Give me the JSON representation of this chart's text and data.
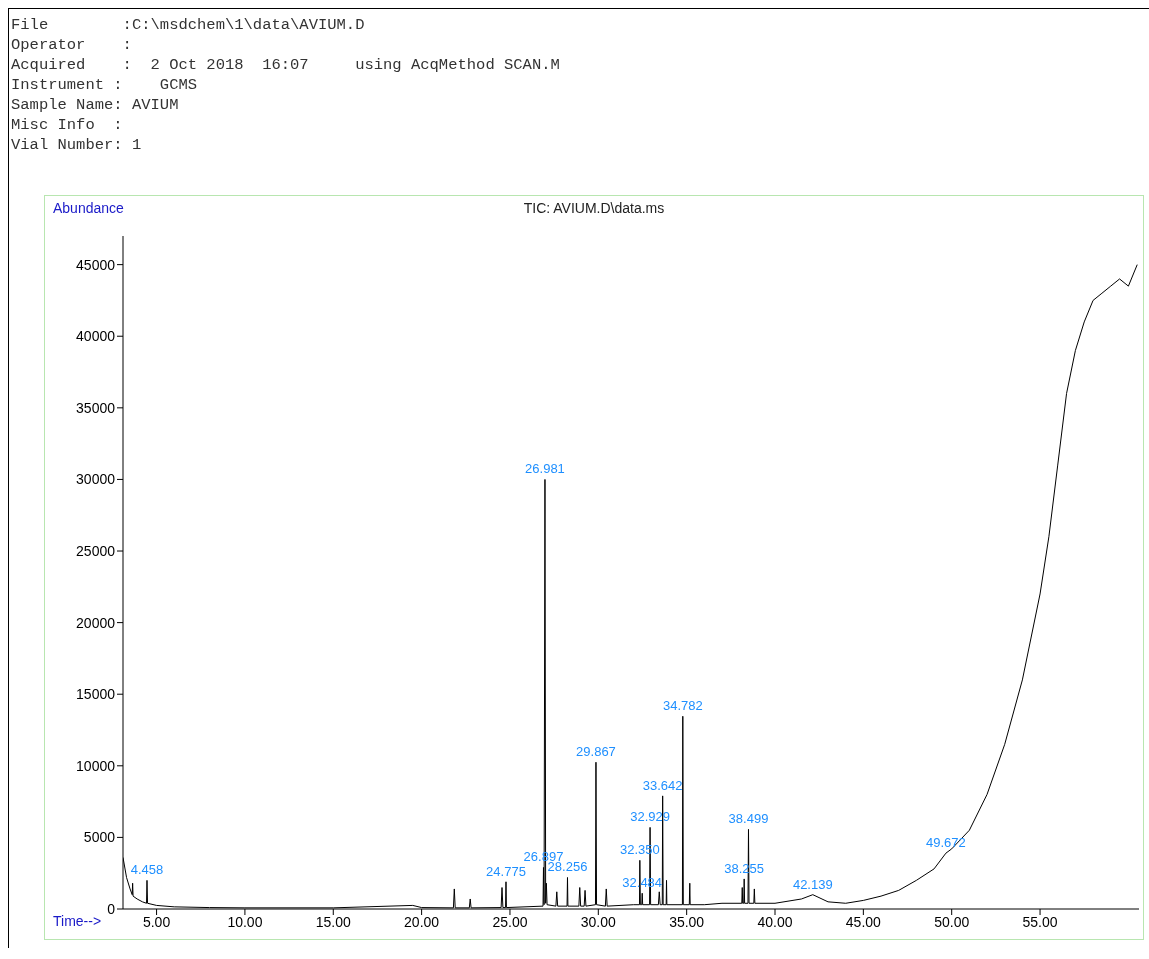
{
  "chart_data": {
    "type": "line",
    "title": "TIC: AVIUM.D\\data.ms",
    "xlabel": "Time-->",
    "ylabel": "Abundance",
    "annotations": [
      "File        :C:\\msdchem\\1\\data\\AVIUM.D",
      "Operator    :",
      "Acquired    :  2 Oct 2018  16:07     using AcqMethod SCAN.M",
      "Instrument :    GCMS",
      "Sample Name: AVIUM",
      "Misc Info  :",
      "Vial Number: 1",
      {
        "text": "4.458",
        "x": 4.458,
        "y": 2000
      },
      {
        "text": "24.775",
        "x": 24.775,
        "y": 1900
      },
      {
        "text": "26.897",
        "x": 26.897,
        "y": 2900
      },
      {
        "text": "26.981",
        "x": 26.981,
        "y": 30000
      },
      {
        "text": "28.256",
        "x": 28.256,
        "y": 2200
      },
      {
        "text": "29.867",
        "x": 29.867,
        "y": 10250
      },
      {
        "text": "32.350",
        "x": 32.35,
        "y": 3400
      },
      {
        "text": "32.484",
        "x": 32.484,
        "y": 1100
      },
      {
        "text": "32.929",
        "x": 32.929,
        "y": 5700
      },
      {
        "text": "33.642",
        "x": 33.642,
        "y": 7900
      },
      {
        "text": "34.782",
        "x": 34.782,
        "y": 13460
      },
      {
        "text": "38.255",
        "x": 38.255,
        "y": 2100
      },
      {
        "text": "38.499",
        "x": 38.499,
        "y": 5560
      },
      {
        "text": "42.139",
        "x": 42.139,
        "y": 1000
      },
      {
        "text": "49.672",
        "x": 49.672,
        "y": 3900
      }
    ],
    "x": [
      3.1,
      3.3,
      3.5,
      3.62,
      3.645,
      3.67,
      3.9,
      4.2,
      4.43,
      4.458,
      4.49,
      5,
      6,
      8,
      10,
      15,
      19.5,
      20,
      21.8,
      21.85,
      21.9,
      22.7,
      22.75,
      22.8,
      24.5,
      24.55,
      24.6,
      24.75,
      24.775,
      24.8,
      26.87,
      26.897,
      26.93,
      26.981,
      27.02,
      27.06,
      27.1,
      27.6,
      27.65,
      27.7,
      28.23,
      28.256,
      28.28,
      28.9,
      28.95,
      29,
      29.2,
      29.25,
      29.3,
      29.84,
      29.867,
      29.9,
      30.4,
      30.45,
      30.5,
      32.0,
      32.33,
      32.35,
      32.38,
      32.46,
      32.484,
      32.51,
      32.9,
      32.929,
      32.96,
      33.4,
      33.45,
      33.5,
      33.62,
      33.642,
      33.67,
      33.84,
      33.86,
      33.88,
      34.76,
      34.782,
      34.81,
      35.15,
      35.177,
      35.2,
      36,
      37,
      38.12,
      38.146,
      38.17,
      38.23,
      38.255,
      38.28,
      38.47,
      38.499,
      38.53,
      38.8,
      38.83,
      38.86,
      40,
      41.5,
      42.139,
      43,
      44,
      45,
      46,
      47,
      48,
      49,
      49.672,
      50,
      51,
      52,
      53,
      54,
      55,
      55.5,
      56,
      56.5,
      57,
      57.5,
      58,
      58.5,
      59,
      59.5,
      60,
      60.5
    ],
    "series": [
      {
        "color": "#000000",
        "values": [
          3600,
          2200,
          1400,
          1000,
          1800,
          900,
          700,
          500,
          400,
          2000,
          400,
          250,
          150,
          100,
          80,
          80,
          250,
          100,
          80,
          1400,
          80,
          80,
          700,
          80,
          100,
          1500,
          100,
          100,
          1900,
          100,
          200,
          2900,
          300,
          30000,
          400,
          1800,
          300,
          200,
          1200,
          200,
          200,
          2200,
          200,
          200,
          1500,
          200,
          200,
          1300,
          200,
          300,
          10250,
          300,
          200,
          1400,
          200,
          300,
          300,
          3400,
          300,
          300,
          1100,
          300,
          300,
          5700,
          300,
          300,
          1200,
          300,
          300,
          7900,
          300,
          300,
          2000,
          300,
          300,
          13460,
          300,
          300,
          1800,
          300,
          300,
          400,
          400,
          1500,
          400,
          400,
          2100,
          400,
          400,
          5560,
          400,
          400,
          1400,
          400,
          400,
          700,
          1000,
          500,
          400,
          600,
          900,
          1300,
          2000,
          2800,
          3900,
          4200,
          5500,
          8000,
          11500,
          16000,
          22000,
          26000,
          31000,
          36000,
          39000,
          41000,
          42500,
          43000,
          43500,
          44000,
          43500,
          45000
        ]
      }
    ],
    "xlim": [
      3.1,
      60.6
    ],
    "ylim": [
      0,
      47000
    ],
    "xticks": [
      {
        "value": 5,
        "label": "5.00"
      },
      {
        "value": 10,
        "label": "10.00"
      },
      {
        "value": 15,
        "label": "15.00"
      },
      {
        "value": 20,
        "label": "20.00"
      },
      {
        "value": 25,
        "label": "25.00"
      },
      {
        "value": 30,
        "label": "30.00"
      },
      {
        "value": 35,
        "label": "35.00"
      },
      {
        "value": 40,
        "label": "40.00"
      },
      {
        "value": 45,
        "label": "45.00"
      },
      {
        "value": 50,
        "label": "50.00"
      },
      {
        "value": 55,
        "label": "55.00"
      }
    ],
    "yticks": [
      0,
      5000,
      10000,
      15000,
      20000,
      25000,
      30000,
      35000,
      40000,
      45000
    ],
    "grid": false,
    "marker": "none",
    "line_style": "solid"
  }
}
